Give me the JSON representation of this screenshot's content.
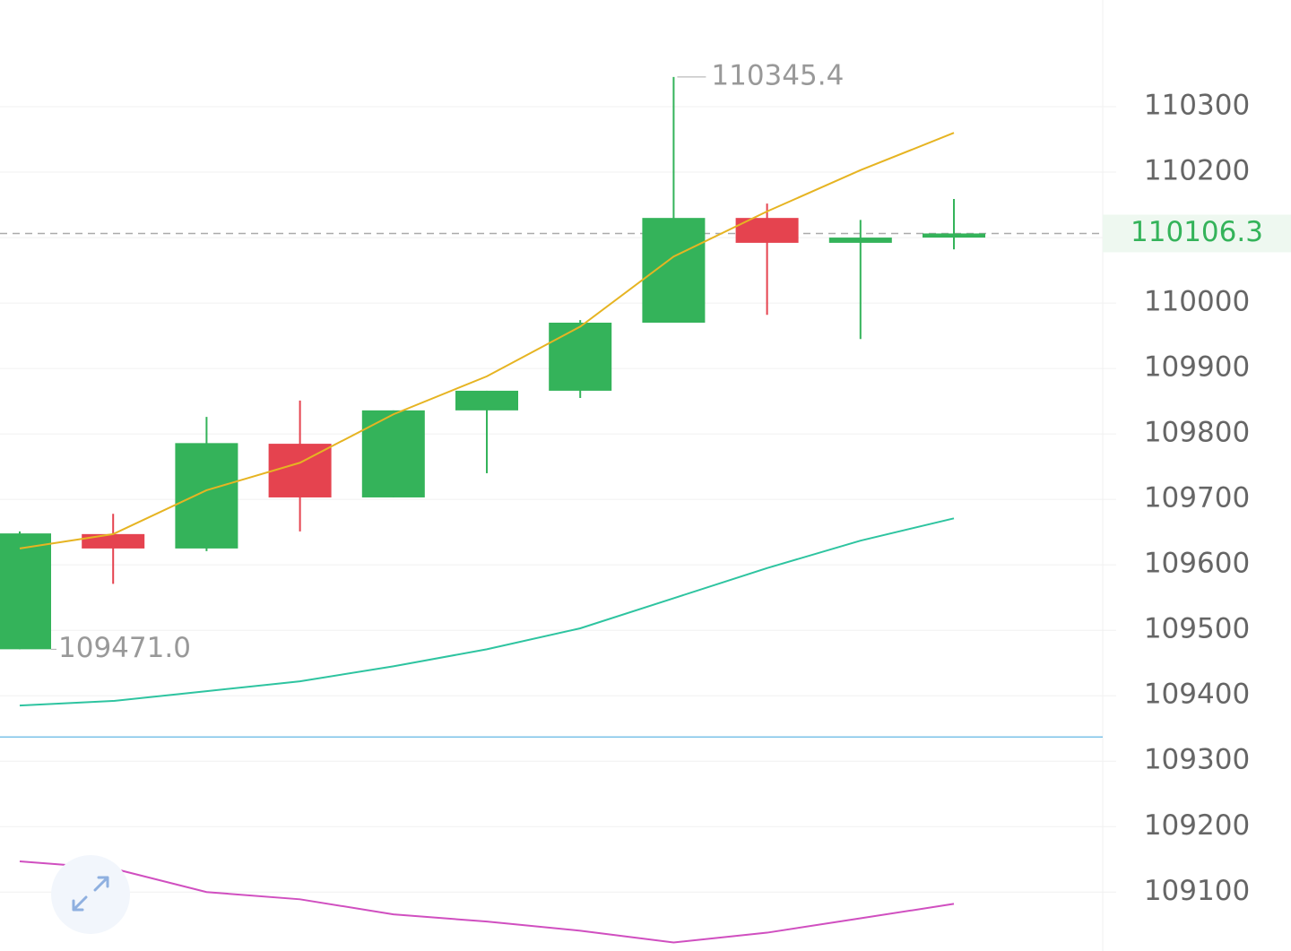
{
  "chart_data": {
    "type": "candlestick",
    "categories": [
      null,
      null,
      null,
      null,
      null,
      null,
      null,
      null,
      null,
      null,
      null
    ],
    "open": [
      109471,
      109647,
      109625,
      109785,
      109703,
      109836,
      109866,
      109970,
      110130,
      110092,
      110100
    ],
    "high": [
      109651,
      109678,
      109826,
      109851,
      109836,
      109866,
      109974,
      110345.4,
      110152,
      110127,
      110159
    ],
    "low": [
      109471,
      109571,
      109621,
      109651,
      109703,
      109740,
      109855,
      109970,
      109982,
      109945,
      110082
    ],
    "close": [
      109648,
      109625,
      109786,
      109703,
      109836,
      109866,
      109970,
      110130,
      110092,
      110100,
      110106.3
    ],
    "up_color": "#34b35a",
    "down_color": "#e5434f",
    "series": [
      {
        "color": "#e6b422",
        "values": [
          109625,
          109647,
          109714,
          109756,
          109830,
          109888,
          109964,
          110071,
          110140,
          110203,
          110260
        ]
      },
      {
        "color": "#2ec4a0",
        "values": [
          109385,
          109392,
          109407,
          109422,
          109445,
          109471,
          109503,
          109549,
          109595,
          109637,
          109671
        ]
      },
      {
        "color": "#d04fc0",
        "values": [
          109147,
          109136,
          109100,
          109089,
          109066,
          109055,
          109041,
          109023,
          109038,
          109060,
          109082
        ]
      }
    ],
    "reference_line": {
      "value": 109337,
      "color": "#7cc3e8"
    },
    "max_label": "110345.4",
    "min_label": "109471.0",
    "ylim": [
      109010,
      110463
    ],
    "yticks": [
      109100,
      109200,
      109300,
      109400,
      109500,
      109600,
      109700,
      109800,
      109900,
      110000,
      110100,
      110200,
      110300
    ],
    "grid": true
  }
}
